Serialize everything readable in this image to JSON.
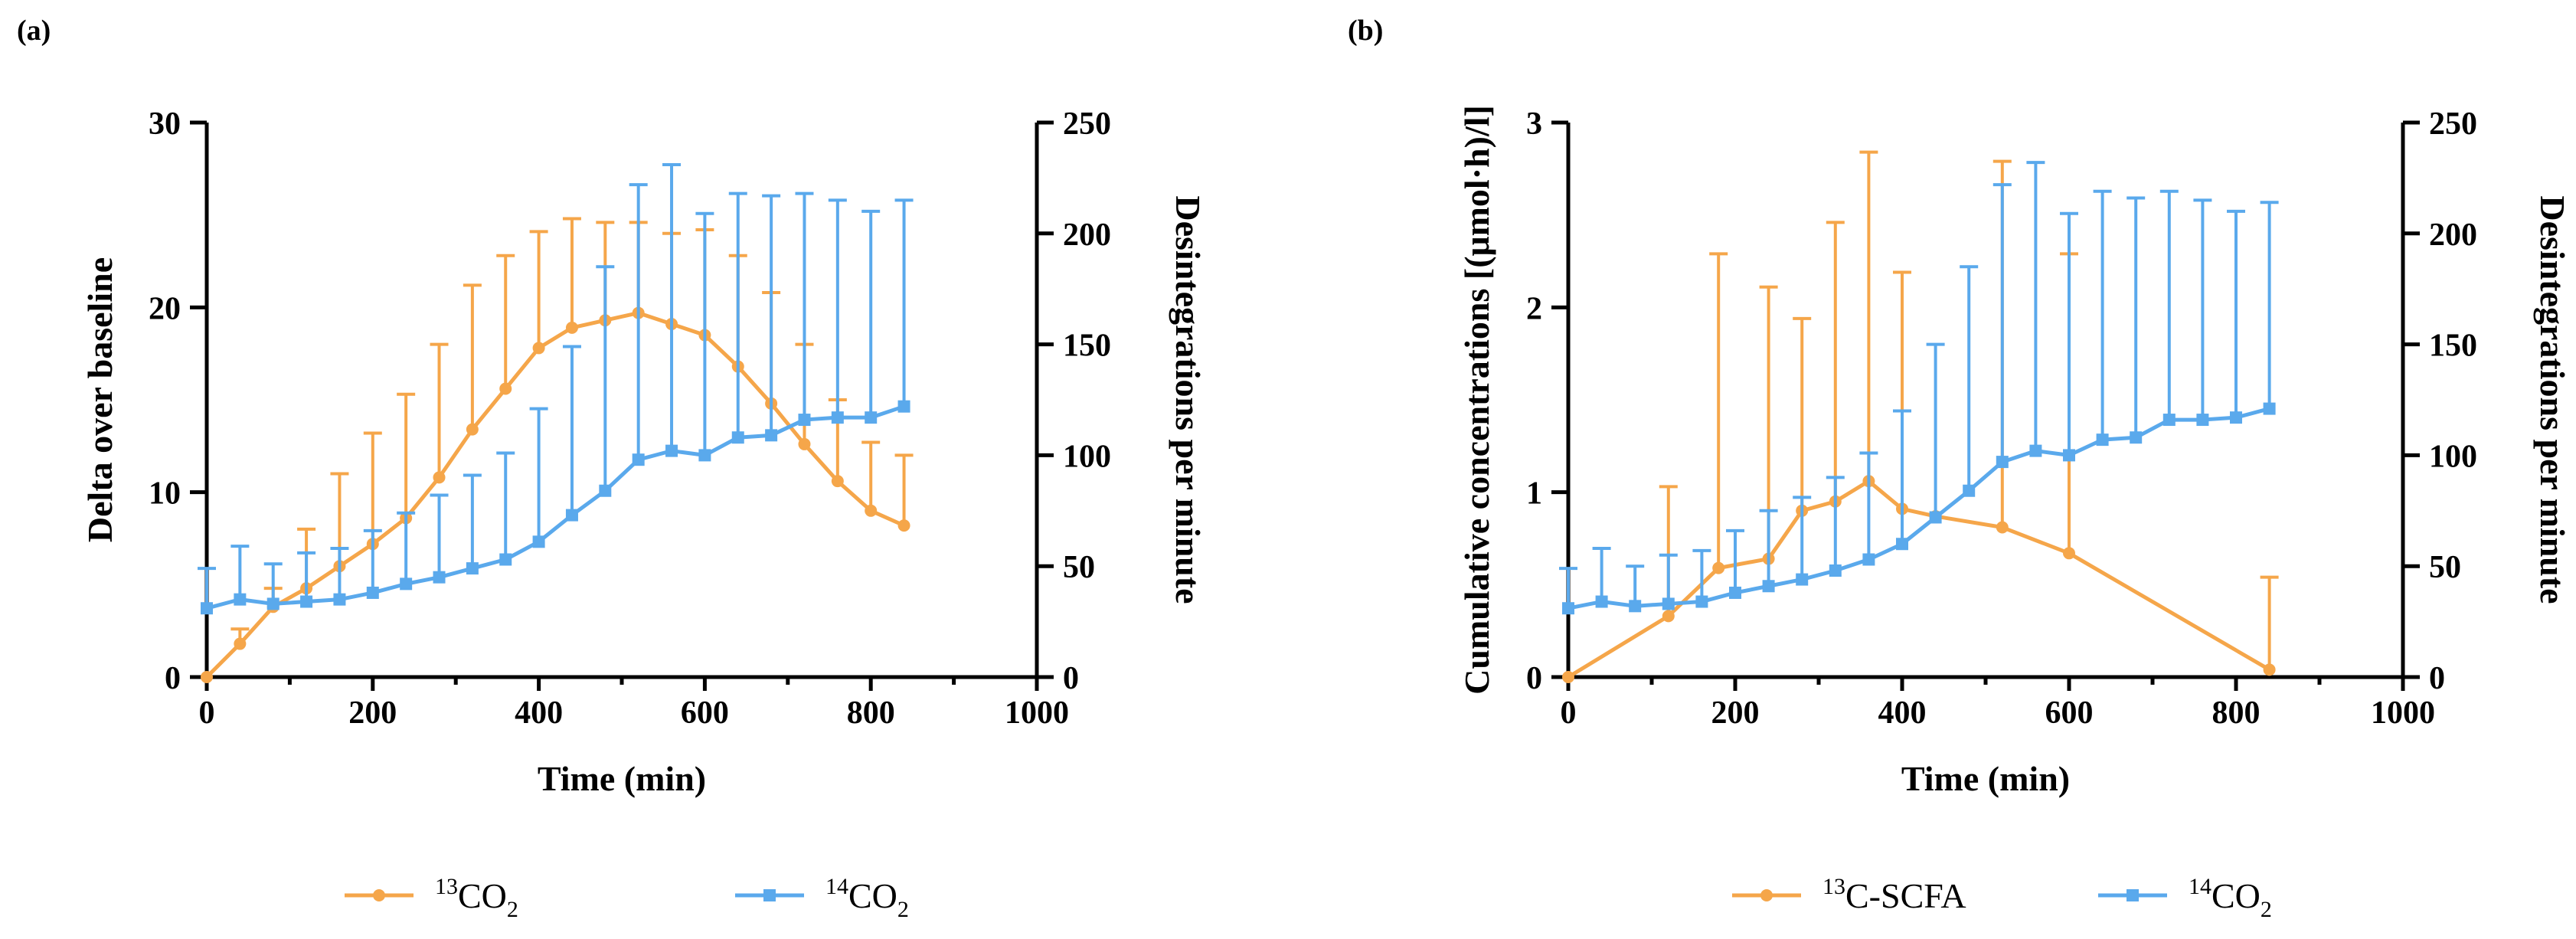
{
  "chart_data": [
    {
      "type": "line",
      "panel_label": "(a)",
      "title": "",
      "xlabel": "Time (min)",
      "ylabel": "Delta over baseline",
      "y2label": "Desintegrations per minute",
      "xlim": [
        0,
        1000
      ],
      "ylim": [
        0,
        30
      ],
      "y2lim": [
        0,
        250
      ],
      "xticks": [
        "0",
        "200",
        "400",
        "600",
        "800",
        "1000"
      ],
      "yticks": [
        "0",
        "10",
        "20",
        "30"
      ],
      "y2ticks": [
        "0",
        "50",
        "100",
        "150",
        "200",
        "250"
      ],
      "legend_position": "bottom",
      "series": [
        {
          "name": "13CO2",
          "legend_sup": "13",
          "legend_main": "CO",
          "legend_sub": "2",
          "axis": "left",
          "color": "#F5A64A",
          "marker": "circle",
          "x": [
            0,
            40,
            80,
            120,
            160,
            200,
            240,
            280,
            320,
            360,
            400,
            440,
            480,
            520,
            560,
            600,
            640,
            680,
            720,
            760,
            800,
            840
          ],
          "y": [
            0,
            1.8,
            3.8,
            4.8,
            6.0,
            7.2,
            8.6,
            10.8,
            13.4,
            15.6,
            17.8,
            18.9,
            19.3,
            19.7,
            19.1,
            18.5,
            16.8,
            14.8,
            12.6,
            10.6,
            9.0,
            8.2
          ],
          "err": [
            0,
            0.8,
            1.0,
            3.2,
            5.0,
            6.0,
            6.7,
            7.2,
            7.8,
            7.2,
            6.3,
            5.9,
            5.3,
            4.9,
            4.9,
            5.7,
            6.0,
            6.0,
            5.4,
            4.4,
            3.7,
            3.8
          ]
        },
        {
          "name": "14CO2",
          "legend_sup": "14",
          "legend_main": "CO",
          "legend_sub": "2",
          "axis": "right",
          "color": "#5AA9EC",
          "marker": "square",
          "x": [
            0,
            40,
            80,
            120,
            160,
            200,
            240,
            280,
            320,
            360,
            400,
            440,
            480,
            520,
            560,
            600,
            640,
            680,
            720,
            760,
            800,
            840
          ],
          "y": [
            31,
            35,
            33,
            34,
            35,
            38,
            42,
            45,
            49,
            53,
            61,
            73,
            84,
            98,
            102,
            100,
            108,
            109,
            116,
            117,
            117,
            122
          ],
          "err": [
            18,
            24,
            18,
            22,
            23,
            28,
            32,
            37,
            42,
            48,
            60,
            76,
            101,
            124,
            129,
            109,
            110,
            108,
            102,
            98,
            93,
            93
          ]
        }
      ]
    },
    {
      "type": "line",
      "panel_label": "(b)",
      "title": "",
      "xlabel": "Time (min)",
      "ylabel": "Cumulative concentrations [(μmol·h)/l]",
      "y2label": "Desintegrations per minute",
      "xlim": [
        0,
        1000
      ],
      "ylim": [
        0,
        3
      ],
      "y2lim": [
        0,
        250
      ],
      "xticks": [
        "0",
        "200",
        "400",
        "600",
        "800",
        "1000"
      ],
      "yticks": [
        "0",
        "1",
        "2",
        "3"
      ],
      "y2ticks": [
        "0",
        "50",
        "100",
        "150",
        "200",
        "250"
      ],
      "legend_position": "bottom",
      "series": [
        {
          "name": "13C-SCFA",
          "legend_sup": "13",
          "legend_main": "C-SCFA",
          "legend_sub": "",
          "axis": "left",
          "color": "#F5A64A",
          "marker": "circle",
          "x": [
            0,
            120,
            180,
            240,
            280,
            320,
            360,
            400,
            440,
            520,
            600,
            840
          ],
          "y": [
            0,
            0.33,
            0.59,
            0.64,
            0.9,
            0.95,
            1.06,
            0.91,
            0.87,
            0.81,
            0.67,
            0.04
          ],
          "err": [
            0,
            0.7,
            1.7,
            1.47,
            1.04,
            1.51,
            1.78,
            1.28,
            0,
            1.98,
            1.62,
            0.5
          ]
        },
        {
          "name": "14CO2",
          "legend_sup": "14",
          "legend_main": "CO",
          "legend_sub": "2",
          "axis": "right",
          "color": "#5AA9EC",
          "marker": "square",
          "x": [
            0,
            40,
            80,
            120,
            160,
            200,
            240,
            280,
            320,
            360,
            400,
            440,
            480,
            520,
            560,
            600,
            640,
            680,
            720,
            760,
            800,
            840
          ],
          "y": [
            31,
            34,
            32,
            33,
            34,
            38,
            41,
            44,
            48,
            53,
            60,
            72,
            84,
            97,
            102,
            100,
            107,
            108,
            116,
            116,
            117,
            121
          ],
          "err": [
            18,
            24,
            18,
            22,
            23,
            28,
            34,
            37,
            42,
            48,
            60,
            78,
            101,
            125,
            130,
            109,
            112,
            108,
            103,
            99,
            93,
            93
          ]
        }
      ]
    }
  ]
}
